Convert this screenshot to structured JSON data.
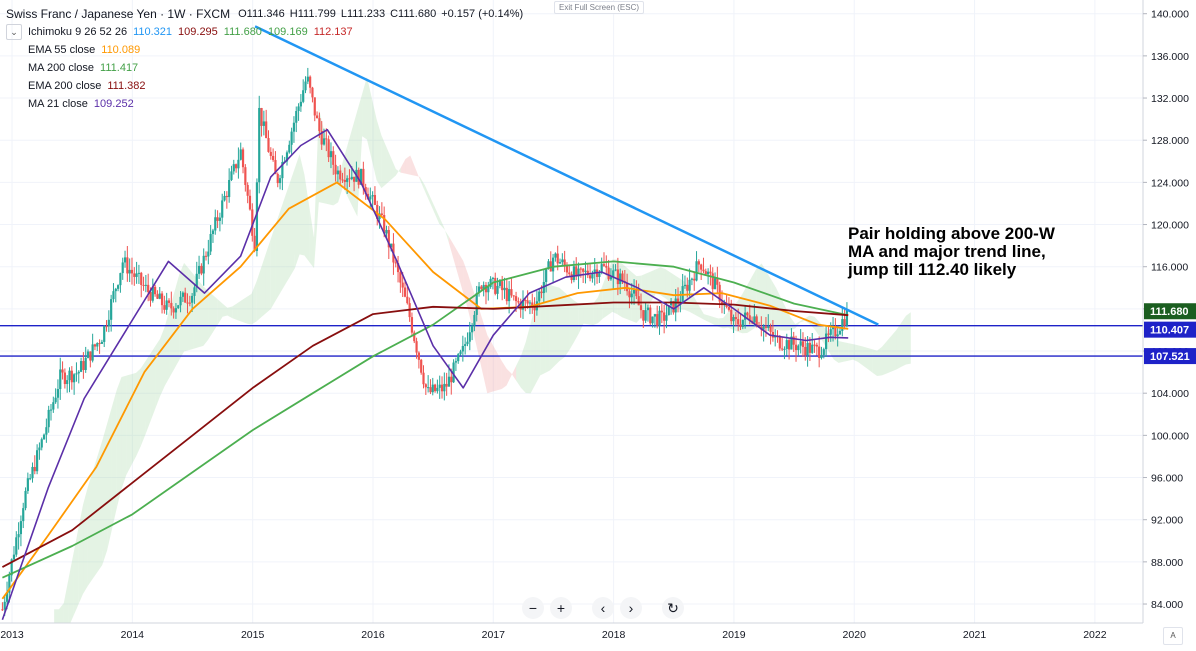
{
  "header": {
    "symbol": "Swiss Franc / Japanese Yen · 1W · FXCM",
    "open": "O111.346",
    "high": "H111.799",
    "low": "L111.233",
    "close": "C111.680",
    "change": "+0.157 (+0.14%)",
    "exit_fullscreen": "Exit Full Screen (ESC)"
  },
  "indicators": {
    "ichimoku": {
      "label": "Ichimoku 9 26 52 26",
      "v1": "110.321",
      "v2": "109.295",
      "v3": "111.680",
      "v4": "109.169",
      "v5": "112.137"
    },
    "ema55": {
      "label": "EMA 55 close",
      "value": "110.089"
    },
    "ma200": {
      "label": "MA 200 close",
      "value": "111.417"
    },
    "ema200": {
      "label": "EMA 200 close",
      "value": "111.382"
    },
    "ma21": {
      "label": "MA 21 close",
      "value": "109.252"
    }
  },
  "annotation": "Pair holding above 200-W MA and major trend line, jump till 112.40 likely",
  "colors": {
    "up": "#26a69a",
    "down": "#ef5350",
    "ema55": "#ff9800",
    "ma200": "#4caf50",
    "ema200": "#880e0e",
    "ma21": "#5b2fa8",
    "trend": "#2196f3",
    "hline": "#1e22c8",
    "cloud_bull": "#a5d6a7",
    "cloud_bear": "#ef9a9a",
    "price_tag": "#1b5e20",
    "level_tag": "#1e22c8"
  },
  "chart_data": {
    "type": "line",
    "title": "Swiss Franc / Japanese Yen · 1W · FXCM",
    "x_axis": {
      "range": [
        2012.9,
        2022.4
      ],
      "ticks": [
        2013,
        2014,
        2015,
        2016,
        2017,
        2018,
        2019,
        2020,
        2021,
        2022
      ],
      "tick_labels": [
        "2013",
        "2014",
        "2015",
        "2016",
        "2017",
        "2018",
        "2019",
        "2020",
        "2021",
        "2022"
      ]
    },
    "y_axis": {
      "range": [
        82.2,
        141.3
      ],
      "ticks": [
        84,
        88,
        92,
        96,
        100,
        104,
        108,
        112,
        116,
        120,
        124,
        128,
        132,
        136,
        140
      ],
      "tick_labels": [
        "84.000",
        "88.000",
        "92.000",
        "96.000",
        "100.000",
        "104.000",
        "108.000",
        "112.000",
        "116.000",
        "120.000",
        "124.000",
        "128.000",
        "132.000",
        "136.000",
        "140.000"
      ]
    },
    "price_path": {
      "x": [
        2012.92,
        2013.1,
        2013.25,
        2013.4,
        2013.55,
        2013.75,
        2013.92,
        2014.1,
        2014.3,
        2014.5,
        2014.72,
        2014.9,
        2015.02,
        2015.05,
        2015.2,
        2015.35,
        2015.45,
        2015.55,
        2015.7,
        2015.9,
        2016.1,
        2016.3,
        2016.45,
        2016.6,
        2016.75,
        2016.9,
        2017.05,
        2017.2,
        2017.35,
        2017.5,
        2017.7,
        2017.9,
        2018.1,
        2018.25,
        2018.4,
        2018.55,
        2018.72,
        2018.85,
        2019.0,
        2019.15,
        2019.35,
        2019.55,
        2019.7,
        2019.85,
        2019.95
      ],
      "close": [
        83.5,
        94.0,
        99.5,
        105.5,
        106.0,
        109.5,
        116.5,
        114.0,
        112.0,
        113.5,
        121.0,
        127.0,
        118.0,
        131.0,
        124.0,
        130.0,
        134.0,
        129.0,
        125.0,
        124.5,
        119.5,
        111.5,
        104.0,
        104.5,
        108.0,
        114.5,
        114.0,
        112.5,
        112.5,
        117.0,
        115.0,
        116.0,
        114.5,
        111.5,
        111.0,
        113.0,
        116.5,
        114.0,
        110.5,
        111.5,
        109.0,
        108.5,
        108.0,
        110.0,
        111.68
      ]
    },
    "series": [
      {
        "name": "EMA 55 close",
        "x": [
          2012.92,
          2013.3,
          2013.7,
          2014.1,
          2014.5,
          2014.9,
          2015.3,
          2015.7,
          2016.1,
          2016.5,
          2016.9,
          2017.3,
          2017.7,
          2018.1,
          2018.5,
          2018.9,
          2019.3,
          2019.7,
          2019.95
        ],
        "values": [
          84.5,
          90.5,
          97.0,
          106.0,
          112.0,
          116.0,
          121.5,
          124.0,
          120.5,
          115.5,
          112.0,
          112.2,
          113.5,
          114.0,
          113.3,
          113.5,
          112.3,
          110.5,
          110.1
        ]
      },
      {
        "name": "MA 200 close",
        "x": [
          2012.92,
          2013.5,
          2014.0,
          2014.5,
          2015.0,
          2015.5,
          2016.0,
          2016.5,
          2017.0,
          2017.5,
          2018.0,
          2018.5,
          2019.0,
          2019.5,
          2019.95
        ],
        "values": [
          86.5,
          89.5,
          92.5,
          96.5,
          100.5,
          104.0,
          107.5,
          110.5,
          114.5,
          116.0,
          116.5,
          116.0,
          114.5,
          112.5,
          111.4
        ]
      },
      {
        "name": "EMA 200 close",
        "x": [
          2012.92,
          2013.5,
          2014.0,
          2014.5,
          2015.0,
          2015.5,
          2016.0,
          2016.5,
          2017.0,
          2017.5,
          2018.0,
          2018.5,
          2019.0,
          2019.5,
          2019.95
        ],
        "values": [
          87.5,
          91.0,
          95.5,
          100.0,
          104.5,
          108.5,
          111.5,
          112.2,
          112.0,
          112.3,
          112.6,
          112.6,
          112.4,
          111.8,
          111.4
        ]
      },
      {
        "name": "MA 21 close",
        "x": [
          2012.92,
          2013.3,
          2013.6,
          2013.95,
          2014.3,
          2014.6,
          2014.9,
          2015.15,
          2015.4,
          2015.62,
          2015.9,
          2016.2,
          2016.5,
          2016.75,
          2017.0,
          2017.3,
          2017.6,
          2017.9,
          2018.2,
          2018.5,
          2018.75,
          2019.0,
          2019.3,
          2019.6,
          2019.8,
          2019.95
        ],
        "values": [
          82.5,
          95.0,
          103.5,
          110.0,
          116.5,
          113.5,
          117.0,
          124.5,
          127.5,
          129.0,
          124.0,
          116.5,
          108.5,
          104.5,
          109.5,
          113.5,
          115.0,
          115.5,
          114.0,
          112.0,
          114.0,
          112.0,
          109.5,
          109.0,
          109.3,
          109.25
        ]
      }
    ],
    "trend_line": {
      "x": [
        2015.02,
        2020.2
      ],
      "y": [
        138.8,
        110.5
      ]
    },
    "horizontal_levels": [
      110.407,
      107.521
    ],
    "price_tags": [
      "111.680",
      "110.407",
      "107.521"
    ],
    "current_price": 111.68,
    "grid": true,
    "legend": "top-left"
  }
}
